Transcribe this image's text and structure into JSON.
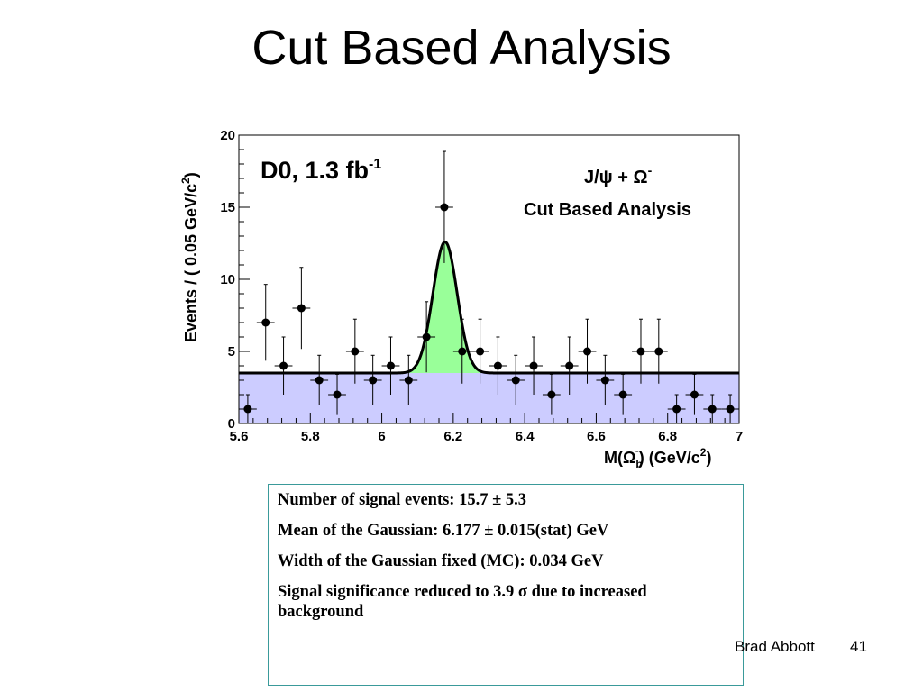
{
  "slide": {
    "title": "Cut Based Analysis",
    "author": "Brad Abbott",
    "page_number": "41"
  },
  "info_box": {
    "lines": [
      "Number of signal events:  15.7 ± 5.3",
      "Mean of the Gaussian: 6.177 ± 0.015(stat) GeV",
      "Width of the Gaussian fixed (MC): 0.034 GeV",
      "Signal significance reduced to 3.9 σ due to increased background"
    ]
  },
  "chart_data": {
    "type": "scatter",
    "experiment_label": "D0, 1.3 fb",
    "experiment_label_sup": "-1",
    "channel_label": "J/ψ + Ω",
    "channel_label_sup": "-",
    "analysis_label": "Cut Based Analysis",
    "xlabel": "M(Ω_b^-) (GeV/c²)",
    "ylabel": "Events / ( 0.05 GeV/c²)",
    "xlim": [
      5.6,
      7.0
    ],
    "ylim": [
      0,
      20
    ],
    "x_ticks": [
      "5.6",
      "5.8",
      "6",
      "6.2",
      "6.4",
      "6.6",
      "6.8",
      "7"
    ],
    "y_ticks": [
      "0",
      "5",
      "10",
      "15",
      "20"
    ],
    "bin_width": 0.05,
    "background_level": 3.5,
    "signal_peak_height": 12.6,
    "signal_mean": 6.177,
    "signal_sigma": 0.034,
    "background_color": "#ccccff",
    "signal_color": "#99ff99",
    "points": [
      {
        "x": 5.625,
        "y": 1
      },
      {
        "x": 5.675,
        "y": 7
      },
      {
        "x": 5.725,
        "y": 4
      },
      {
        "x": 5.775,
        "y": 8
      },
      {
        "x": 5.825,
        "y": 3
      },
      {
        "x": 5.875,
        "y": 2
      },
      {
        "x": 5.925,
        "y": 5
      },
      {
        "x": 5.975,
        "y": 3
      },
      {
        "x": 6.025,
        "y": 4
      },
      {
        "x": 6.075,
        "y": 3
      },
      {
        "x": 6.125,
        "y": 6
      },
      {
        "x": 6.175,
        "y": 15
      },
      {
        "x": 6.225,
        "y": 5
      },
      {
        "x": 6.275,
        "y": 5
      },
      {
        "x": 6.325,
        "y": 4
      },
      {
        "x": 6.375,
        "y": 3
      },
      {
        "x": 6.425,
        "y": 4
      },
      {
        "x": 6.475,
        "y": 2
      },
      {
        "x": 6.525,
        "y": 4
      },
      {
        "x": 6.575,
        "y": 5
      },
      {
        "x": 6.625,
        "y": 3
      },
      {
        "x": 6.675,
        "y": 2
      },
      {
        "x": 6.725,
        "y": 5
      },
      {
        "x": 6.775,
        "y": 5
      },
      {
        "x": 6.825,
        "y": 1
      },
      {
        "x": 6.875,
        "y": 2
      },
      {
        "x": 6.925,
        "y": 1
      },
      {
        "x": 6.975,
        "y": 1
      }
    ]
  }
}
